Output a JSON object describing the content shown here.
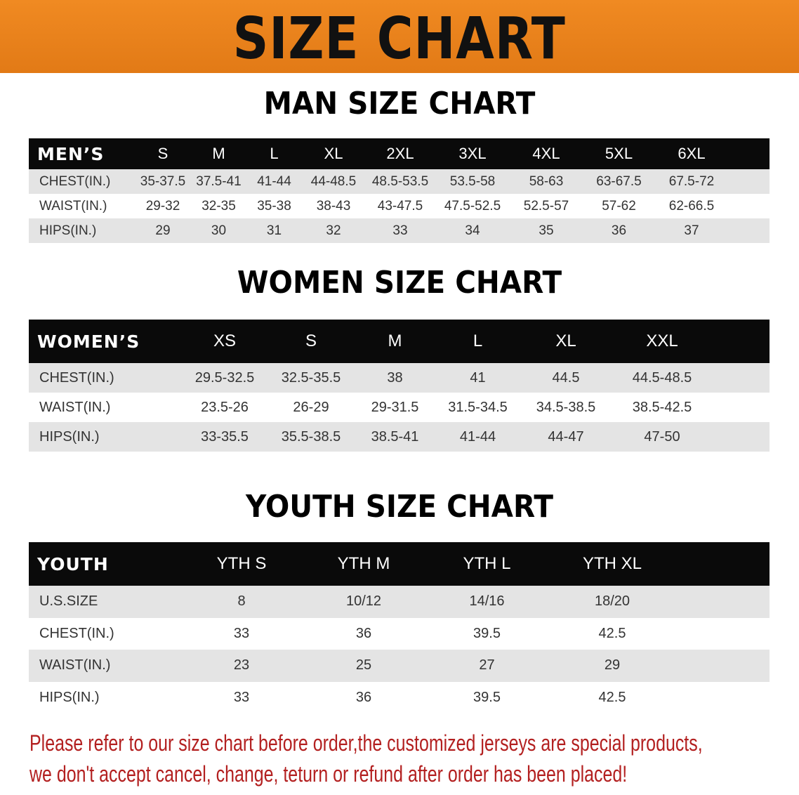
{
  "banner_title": "SIZE CHART",
  "men": {
    "title": "MAN SIZE CHART",
    "header": [
      "MEN’S",
      "S",
      "M",
      "L",
      "XL",
      "2XL",
      "3XL",
      "4XL",
      "5XL",
      "6XL"
    ],
    "rows": [
      [
        "CHEST(IN.)",
        "35-37.5",
        "37.5-41",
        "41-44",
        "44-48.5",
        "48.5-53.5",
        "53.5-58",
        "58-63",
        "63-67.5",
        "67.5-72"
      ],
      [
        "WAIST(IN.)",
        "29-32",
        "32-35",
        "35-38",
        "38-43",
        "43-47.5",
        "47.5-52.5",
        "52.5-57",
        "57-62",
        "62-66.5"
      ],
      [
        "HIPS(IN.)",
        "29",
        "30",
        "31",
        "32",
        "33",
        "34",
        "35",
        "36",
        "37"
      ]
    ]
  },
  "women": {
    "title": "WOMEN SIZE CHART",
    "header": [
      "WOMEN’S",
      "XS",
      "S",
      "M",
      "L",
      "XL",
      "XXL"
    ],
    "rows": [
      [
        "CHEST(IN.)",
        "29.5-32.5",
        "32.5-35.5",
        "38",
        "41",
        "44.5",
        "44.5-48.5"
      ],
      [
        "WAIST(IN.)",
        "23.5-26",
        "26-29",
        "29-31.5",
        "31.5-34.5",
        "34.5-38.5",
        "38.5-42.5"
      ],
      [
        "HIPS(IN.)",
        "33-35.5",
        "35.5-38.5",
        "38.5-41",
        "41-44",
        "44-47",
        "47-50"
      ]
    ]
  },
  "youth": {
    "title": "YOUTH SIZE CHART",
    "header": [
      "YOUTH",
      "YTH S",
      "YTH M",
      "YTH L",
      "YTH XL"
    ],
    "rows": [
      [
        "U.S.SIZE",
        "8",
        "10/12",
        "14/16",
        "18/20"
      ],
      [
        "CHEST(IN.)",
        "33",
        "36",
        "39.5",
        "42.5"
      ],
      [
        "WAIST(IN.)",
        "23",
        "25",
        "27",
        "29"
      ],
      [
        "HIPS(IN.)",
        "33",
        "36",
        "39.5",
        "42.5"
      ]
    ]
  },
  "note": {
    "line1": "Please refer to our size chart before order,the customized jerseys are special products,",
    "line2": "we don't accept cancel, change, teturn or refund after order has been placed!"
  },
  "colors": {
    "banner": "#e8801c",
    "header_row": "#0a0a0a",
    "alt_row": "#e4e4e4",
    "note": "#b32020"
  }
}
